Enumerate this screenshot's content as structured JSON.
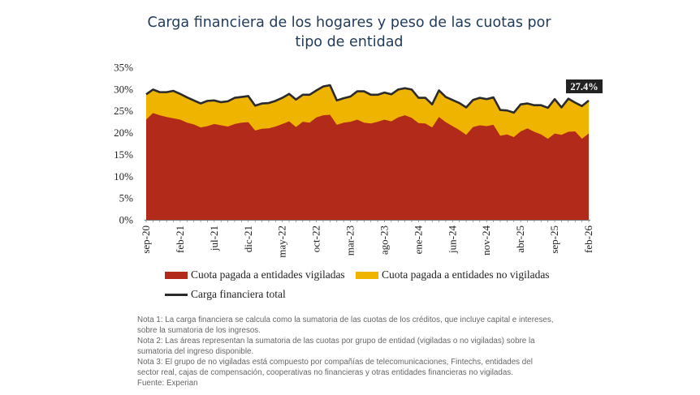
{
  "title": {
    "line1": "Carga financiera de los hogares y peso de las cuotas por",
    "line2": "tipo de entidad"
  },
  "colors": {
    "vigiladas": "#b22a1a",
    "no_vigiladas": "#efb400",
    "total_line": "#2b2b2b",
    "callout_bg": "#222222"
  },
  "chart_data": {
    "type": "area",
    "ylim": [
      0,
      35
    ],
    "y_ticks": [
      "0%",
      "5%",
      "10%",
      "15%",
      "20%",
      "25%",
      "30%",
      "35%"
    ],
    "x_tick_labels": [
      "sep-20",
      "feb-21",
      "jul-21",
      "dic-21",
      "may-22",
      "oct-22",
      "mar-23",
      "ago-23",
      "ene-24",
      "jun-24",
      "nov-24",
      "abr-25",
      "sep-25",
      "feb-26"
    ],
    "series": [
      {
        "name": "Cuota pagada a entidades vigiladas",
        "values": [
          23.0,
          24.5,
          24.0,
          23.6,
          23.3,
          23.0,
          22.3,
          21.9,
          21.2,
          21.5,
          22.0,
          21.7,
          21.4,
          22.0,
          22.3,
          22.4,
          20.5,
          20.9,
          21.0,
          21.4,
          22.0,
          22.6,
          21.3,
          22.5,
          22.3,
          23.5,
          24.0,
          24.1,
          21.8,
          22.3,
          22.5,
          23.0,
          22.3,
          22.1,
          22.5,
          23.0,
          22.6,
          23.5,
          24.0,
          23.4,
          22.2,
          22.1,
          21.2,
          23.6,
          22.4,
          21.5,
          20.6,
          19.5,
          21.3,
          21.7,
          21.5,
          21.8,
          19.3,
          19.6,
          19.0,
          20.3,
          21.0,
          20.2,
          19.6,
          18.6,
          19.8,
          19.5,
          20.2,
          20.3,
          18.6,
          19.8
        ]
      },
      {
        "name": "Cuota pagada a entidades no vigiladas",
        "values": [
          5.8,
          5.4,
          5.3,
          5.7,
          6.3,
          5.9,
          5.8,
          5.5,
          5.5,
          5.8,
          5.4,
          5.3,
          5.8,
          6.0,
          5.9,
          6.0,
          5.7,
          5.8,
          5.8,
          5.9,
          6.0,
          6.3,
          6.3,
          6.2,
          6.4,
          6.2,
          6.6,
          6.8,
          5.6,
          5.6,
          5.8,
          6.5,
          7.2,
          6.6,
          6.2,
          6.2,
          6.2,
          6.4,
          6.2,
          6.5,
          5.8,
          5.9,
          5.3,
          6.1,
          5.8,
          6.0,
          6.2,
          6.3,
          6.2,
          6.3,
          6.2,
          6.3,
          5.9,
          5.5,
          5.6,
          6.2,
          5.7,
          6.1,
          6.7,
          7.1,
          7.9,
          6.3,
          7.6,
          6.6,
          7.5,
          7.6
        ]
      },
      {
        "name": "Carga financiera total",
        "values": [
          28.8,
          29.9,
          29.3,
          29.3,
          29.6,
          28.9,
          28.1,
          27.4,
          26.7,
          27.3,
          27.4,
          27.0,
          27.2,
          28.0,
          28.2,
          28.4,
          26.2,
          26.7,
          26.8,
          27.3,
          28.0,
          28.9,
          27.6,
          28.7,
          28.7,
          29.7,
          30.6,
          30.9,
          27.4,
          27.9,
          28.3,
          29.5,
          29.5,
          28.7,
          28.7,
          29.2,
          28.8,
          29.9,
          30.2,
          29.9,
          28.0,
          28.0,
          26.5,
          29.7,
          28.2,
          27.5,
          26.8,
          25.8,
          27.5,
          28.0,
          27.7,
          28.1,
          25.2,
          25.1,
          24.6,
          26.5,
          26.7,
          26.3,
          26.3,
          25.7,
          27.7,
          25.8,
          27.8,
          26.9,
          26.1,
          27.4
        ]
      }
    ],
    "callout": "27.4%",
    "grid": false,
    "legend_position": "bottom"
  },
  "legend": {
    "items": [
      "Cuota pagada a entidades vigiladas",
      "Cuota pagada a entidades no vigiladas",
      "Carga financiera total"
    ]
  },
  "notes": [
    "Nota 1: La carga financiera se calcula como la sumatoria  de las cuotas de los créditos, que incluye capital e intereses,",
    "sobre la sumatoria  de los ingresos.",
    "Nota 2: Las áreas  representan la sumatoria  de las cuotas por grupo de entidad (vigiladas o no vigiladas) sobre la",
    "sumatoria  del ingreso disponible.",
    "Nota 3: El grupo de no vigiladas  está compuesto por compañías de telecomunicaciones,  Fintechs, entidades del",
    "sector real,  cajas de compensación, cooperativas  no financieras y otras entidades financieras no vigiladas.",
    "Fuente: Experian"
  ]
}
